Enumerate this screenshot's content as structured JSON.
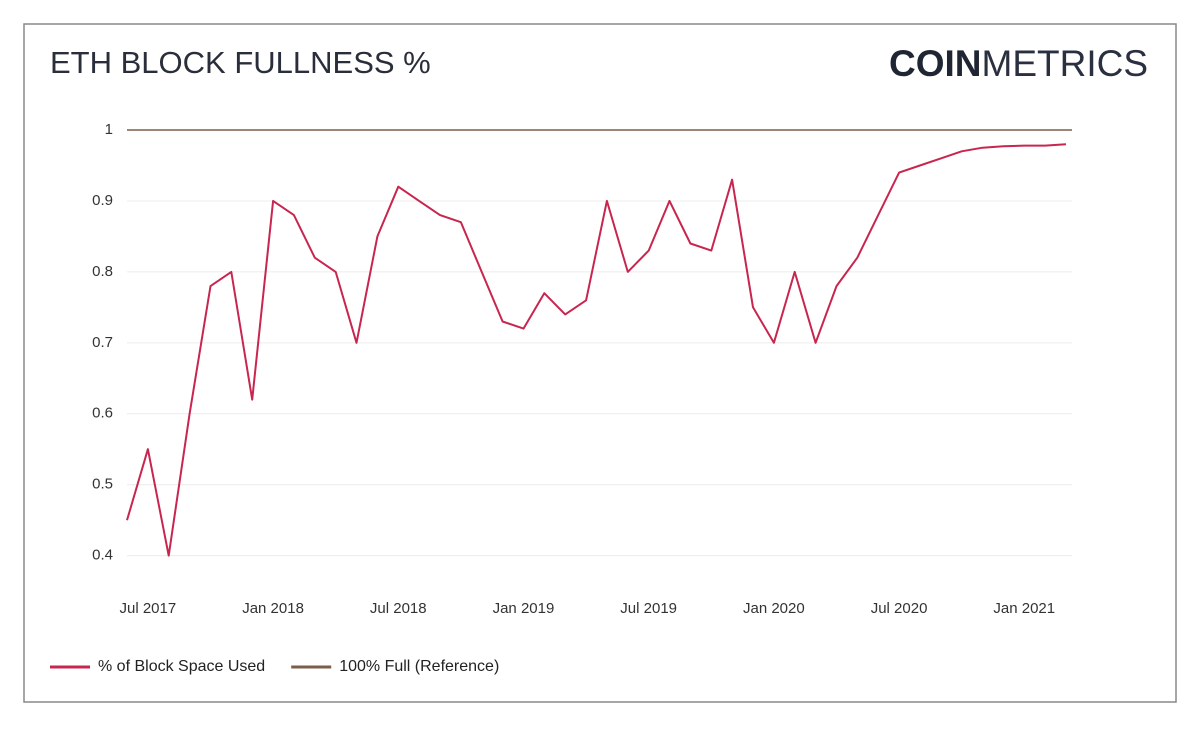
{
  "logo": {
    "bold": "COIN",
    "light": "METRICS"
  },
  "chart_data": {
    "type": "line",
    "title": "ETH BLOCK FULLNESS %",
    "x": [
      "2017-06",
      "2017-07",
      "2017-08",
      "2017-09",
      "2017-10",
      "2017-11",
      "2017-12",
      "2018-01",
      "2018-02",
      "2018-03",
      "2018-04",
      "2018-05",
      "2018-06",
      "2018-07",
      "2018-08",
      "2018-09",
      "2018-10",
      "2018-11",
      "2018-12",
      "2019-01",
      "2019-02",
      "2019-03",
      "2019-04",
      "2019-05",
      "2019-06",
      "2019-07",
      "2019-08",
      "2019-09",
      "2019-10",
      "2019-11",
      "2019-12",
      "2020-01",
      "2020-02",
      "2020-03",
      "2020-04",
      "2020-05",
      "2020-06",
      "2020-07",
      "2020-08",
      "2020-09",
      "2020-10",
      "2020-11",
      "2020-12",
      "2021-01",
      "2021-02",
      "2021-03"
    ],
    "series": [
      {
        "name": "% of Block Space Used",
        "color": "#c8254f",
        "values": [
          0.45,
          0.55,
          0.4,
          0.6,
          0.78,
          0.8,
          0.62,
          0.9,
          0.88,
          0.82,
          0.8,
          0.7,
          0.85,
          0.92,
          0.9,
          0.88,
          0.87,
          0.8,
          0.73,
          0.72,
          0.77,
          0.74,
          0.76,
          0.9,
          0.8,
          0.83,
          0.9,
          0.84,
          0.83,
          0.93,
          0.75,
          0.7,
          0.8,
          0.7,
          0.78,
          0.82,
          0.88,
          0.94,
          0.95,
          0.96,
          0.97,
          0.975,
          0.977,
          0.978,
          0.978,
          0.98
        ]
      },
      {
        "name": "100% Full (Reference)",
        "color": "#7b5e4a",
        "values": [
          1,
          1,
          1,
          1,
          1,
          1,
          1,
          1,
          1,
          1,
          1,
          1,
          1,
          1,
          1,
          1,
          1,
          1,
          1,
          1,
          1,
          1,
          1,
          1,
          1,
          1,
          1,
          1,
          1,
          1,
          1,
          1,
          1,
          1,
          1,
          1,
          1,
          1,
          1,
          1,
          1,
          1,
          1,
          1,
          1,
          1
        ]
      }
    ],
    "xlim": [
      "2017-06",
      "2021-03"
    ],
    "xticks": [
      {
        "value": "2017-07",
        "label": "Jul 2017"
      },
      {
        "value": "2018-01",
        "label": "Jan 2018"
      },
      {
        "value": "2018-07",
        "label": "Jul 2018"
      },
      {
        "value": "2019-01",
        "label": "Jan 2019"
      },
      {
        "value": "2019-07",
        "label": "Jul 2019"
      },
      {
        "value": "2020-01",
        "label": "Jan 2020"
      },
      {
        "value": "2020-07",
        "label": "Jul 2020"
      },
      {
        "value": "2021-01",
        "label": "Jan 2021"
      }
    ],
    "ylim": [
      0.36,
      1
    ],
    "yticks": [
      0.4,
      0.5,
      0.6,
      0.7,
      0.8,
      0.9,
      1
    ],
    "grid": true
  }
}
